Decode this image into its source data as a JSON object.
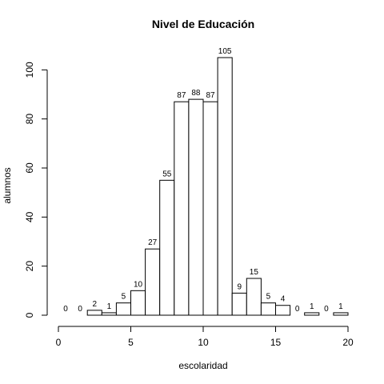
{
  "chart_data": {
    "type": "bar",
    "title": "Nivel de Educación",
    "xlabel": "escolaridad",
    "ylabel": "alumnos",
    "bin_edges": [
      0,
      1,
      2,
      3,
      4,
      5,
      6,
      7,
      8,
      9,
      10,
      11,
      12,
      13,
      14,
      15,
      16,
      17,
      18,
      19,
      20
    ],
    "values": [
      0,
      0,
      2,
      1,
      5,
      10,
      27,
      55,
      87,
      88,
      87,
      105,
      9,
      15,
      5,
      4,
      0,
      1,
      0,
      1
    ],
    "xlim": [
      0,
      20
    ],
    "ylim": [
      0,
      105
    ],
    "x_ticks": [
      0,
      5,
      10,
      15,
      20
    ],
    "y_ticks": [
      0,
      20,
      40,
      60,
      80,
      100
    ],
    "grid": false,
    "legend": "none",
    "bar_fill": "#ffffff",
    "bar_stroke": "#000000"
  }
}
